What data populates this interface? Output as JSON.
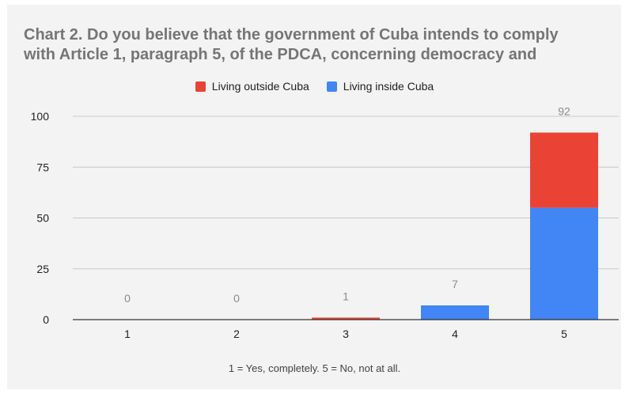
{
  "chart_data": {
    "type": "bar",
    "stacked": true,
    "title_lines": [
      "Chart 2. Do you believe that the government of Cuba intends to comply",
      "with Article 1, paragraph 5, of the PDCA, concerning democracy and"
    ],
    "xlabel": "1 = Yes, completely.  5 = No, not at all.",
    "ylabel": "",
    "categories": [
      "1",
      "2",
      "3",
      "4",
      "5"
    ],
    "series": [
      {
        "name": "Living inside Cuba",
        "color": "#4285f4",
        "values": [
          0,
          0,
          0,
          7,
          55
        ]
      },
      {
        "name": "Living outside Cuba",
        "color": "#ea4335",
        "values": [
          0,
          0,
          1,
          0,
          37
        ]
      }
    ],
    "totals": [
      "0",
      "0",
      "1",
      "7",
      "92"
    ],
    "legend_order": [
      "Living outside Cuba",
      "Living inside Cuba"
    ],
    "legend_position": "top",
    "ylim": [
      0,
      100
    ],
    "yticks": [
      "0",
      "25",
      "50",
      "75",
      "100"
    ],
    "grid": true
  }
}
